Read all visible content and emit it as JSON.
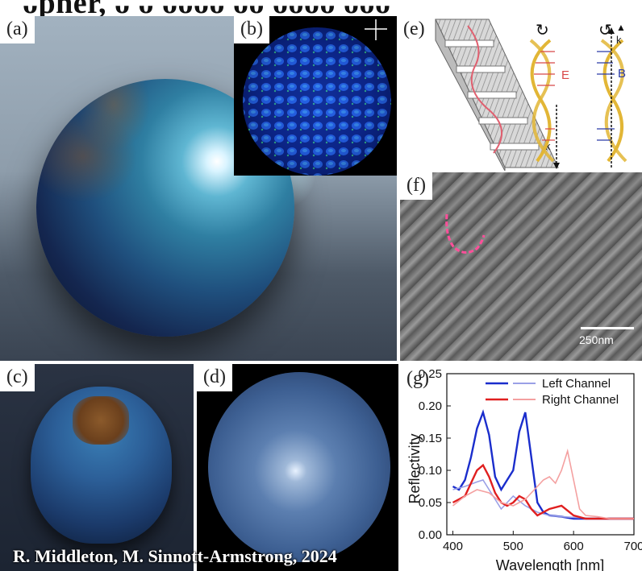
{
  "panels": {
    "a": {
      "label": "(a)"
    },
    "b": {
      "label": "(b)"
    },
    "c": {
      "label": "(c)"
    },
    "d": {
      "label": "(d)"
    },
    "e": {
      "label": "(e)",
      "vectors": {
        "E": "E",
        "B": "B",
        "k": "k"
      }
    },
    "f": {
      "label": "(f)",
      "scale_bar": "250nm"
    },
    "g": {
      "label": "(g)"
    }
  },
  "credit": "R. Middleton, M. Sinnott-Armstrong, 2024",
  "chart_data": {
    "type": "line",
    "xlabel": "Wavelength [nm]",
    "ylabel": "Reflectivity",
    "xlim": [
      390,
      700
    ],
    "ylim": [
      0,
      0.25
    ],
    "xticks": [
      400,
      500,
      600,
      700
    ],
    "yticks": [
      0.0,
      0.05,
      0.1,
      0.15,
      0.2,
      0.25
    ],
    "legend_position": "top-right",
    "series": [
      {
        "name": "Left Channel",
        "color": "#1a2dcc",
        "x": [
          400,
          410,
          420,
          430,
          440,
          450,
          460,
          470,
          480,
          490,
          500,
          510,
          520,
          530,
          540,
          550,
          560,
          580,
          600,
          620,
          640,
          660,
          680,
          700
        ],
        "y": [
          0.075,
          0.07,
          0.085,
          0.12,
          0.165,
          0.19,
          0.155,
          0.09,
          0.07,
          0.085,
          0.1,
          0.16,
          0.19,
          0.12,
          0.05,
          0.035,
          0.03,
          0.028,
          0.025,
          0.025,
          0.025,
          0.025,
          0.025,
          0.025
        ]
      },
      {
        "name": "",
        "color": "#9aa0e6",
        "x": [
          400,
          420,
          440,
          450,
          460,
          470,
          480,
          490,
          500,
          520,
          540,
          560,
          580,
          600,
          620,
          640,
          660,
          680,
          700
        ],
        "y": [
          0.07,
          0.075,
          0.082,
          0.085,
          0.07,
          0.055,
          0.04,
          0.05,
          0.06,
          0.045,
          0.035,
          0.03,
          0.028,
          0.027,
          0.026,
          0.025,
          0.025,
          0.025,
          0.025
        ]
      },
      {
        "name": "Right Channel",
        "color": "#e01f1f",
        "x": [
          400,
          420,
          430,
          440,
          450,
          460,
          470,
          480,
          490,
          500,
          510,
          520,
          530,
          540,
          560,
          580,
          600,
          620,
          640,
          660,
          680,
          700
        ],
        "y": [
          0.05,
          0.06,
          0.08,
          0.1,
          0.108,
          0.09,
          0.065,
          0.05,
          0.045,
          0.05,
          0.06,
          0.055,
          0.04,
          0.03,
          0.04,
          0.045,
          0.03,
          0.025,
          0.025,
          0.025,
          0.025,
          0.025
        ]
      },
      {
        "name": "",
        "color": "#f4a0a0",
        "x": [
          400,
          420,
          440,
          460,
          480,
          500,
          520,
          540,
          550,
          560,
          570,
          580,
          590,
          600,
          610,
          620,
          640,
          660,
          680,
          700
        ],
        "y": [
          0.045,
          0.06,
          0.07,
          0.065,
          0.05,
          0.045,
          0.055,
          0.075,
          0.085,
          0.09,
          0.08,
          0.1,
          0.13,
          0.085,
          0.04,
          0.03,
          0.028,
          0.025,
          0.025,
          0.025
        ]
      }
    ]
  }
}
